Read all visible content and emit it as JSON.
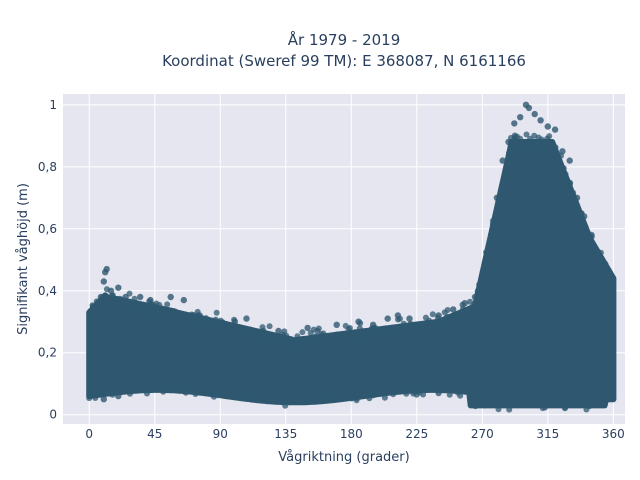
{
  "chart_data": {
    "type": "scatter",
    "title_line1": "År 1979 - 2019",
    "title_line2": "Koordinat (Sweref 99 TM): E 368087, N 6161166",
    "xlabel": "Vågriktning (grader)",
    "ylabel": "Signifikant våghöjd (m)",
    "xlim": [
      -18,
      368
    ],
    "ylim": [
      -0.03,
      1.035
    ],
    "xticks": [
      0,
      45,
      90,
      135,
      180,
      225,
      270,
      315,
      360
    ],
    "xtick_labels": [
      "0",
      "45",
      "90",
      "135",
      "180",
      "225",
      "270",
      "315",
      "360"
    ],
    "yticks": [
      0,
      0.2,
      0.4,
      0.6,
      0.8,
      1
    ],
    "ytick_labels": [
      "0",
      "0,2",
      "0,4",
      "0,6",
      "0,8",
      "1"
    ],
    "grid": true,
    "series": [
      {
        "marker_color": "#2f5870",
        "points": [
          [
            2,
            0.31
          ],
          [
            4,
            0.34
          ],
          [
            6,
            0.36
          ],
          [
            8,
            0.38
          ],
          [
            10,
            0.43
          ],
          [
            11,
            0.46
          ],
          [
            12,
            0.47
          ],
          [
            15,
            0.4
          ],
          [
            20,
            0.41
          ],
          [
            25,
            0.38
          ],
          [
            30,
            0.36
          ],
          [
            35,
            0.38
          ],
          [
            42,
            0.37
          ],
          [
            50,
            0.34
          ],
          [
            56,
            0.38
          ],
          [
            65,
            0.37
          ],
          [
            75,
            0.32
          ],
          [
            100,
            0.3
          ],
          [
            108,
            0.31
          ],
          [
            130,
            0.27
          ],
          [
            150,
            0.28
          ],
          [
            170,
            0.29
          ],
          [
            185,
            0.3
          ],
          [
            195,
            0.29
          ],
          [
            205,
            0.31
          ],
          [
            212,
            0.32
          ],
          [
            220,
            0.31
          ],
          [
            240,
            0.32
          ],
          [
            250,
            0.34
          ],
          [
            258,
            0.36
          ],
          [
            265,
            0.38
          ],
          [
            268,
            0.42
          ],
          [
            272,
            0.48
          ],
          [
            276,
            0.58
          ],
          [
            280,
            0.7
          ],
          [
            284,
            0.82
          ],
          [
            288,
            0.88
          ],
          [
            292,
            0.94
          ],
          [
            296,
            0.96
          ],
          [
            300,
            1.0
          ],
          [
            302,
            0.99
          ],
          [
            306,
            0.97
          ],
          [
            310,
            0.95
          ],
          [
            315,
            0.93
          ],
          [
            320,
            0.92
          ],
          [
            325,
            0.85
          ],
          [
            330,
            0.82
          ],
          [
            335,
            0.7
          ],
          [
            340,
            0.64
          ],
          [
            345,
            0.58
          ],
          [
            350,
            0.52
          ],
          [
            355,
            0.46
          ],
          [
            358,
            0.45
          ],
          [
            300,
            0.05
          ],
          [
            320,
            0.04
          ],
          [
            340,
            0.05
          ],
          [
            10,
            0.05
          ],
          [
            20,
            0.06
          ],
          [
            90,
            0.08
          ],
          [
            180,
            0.08
          ],
          [
            240,
            0.07
          ],
          [
            280,
            0.04
          ]
        ]
      }
    ]
  }
}
